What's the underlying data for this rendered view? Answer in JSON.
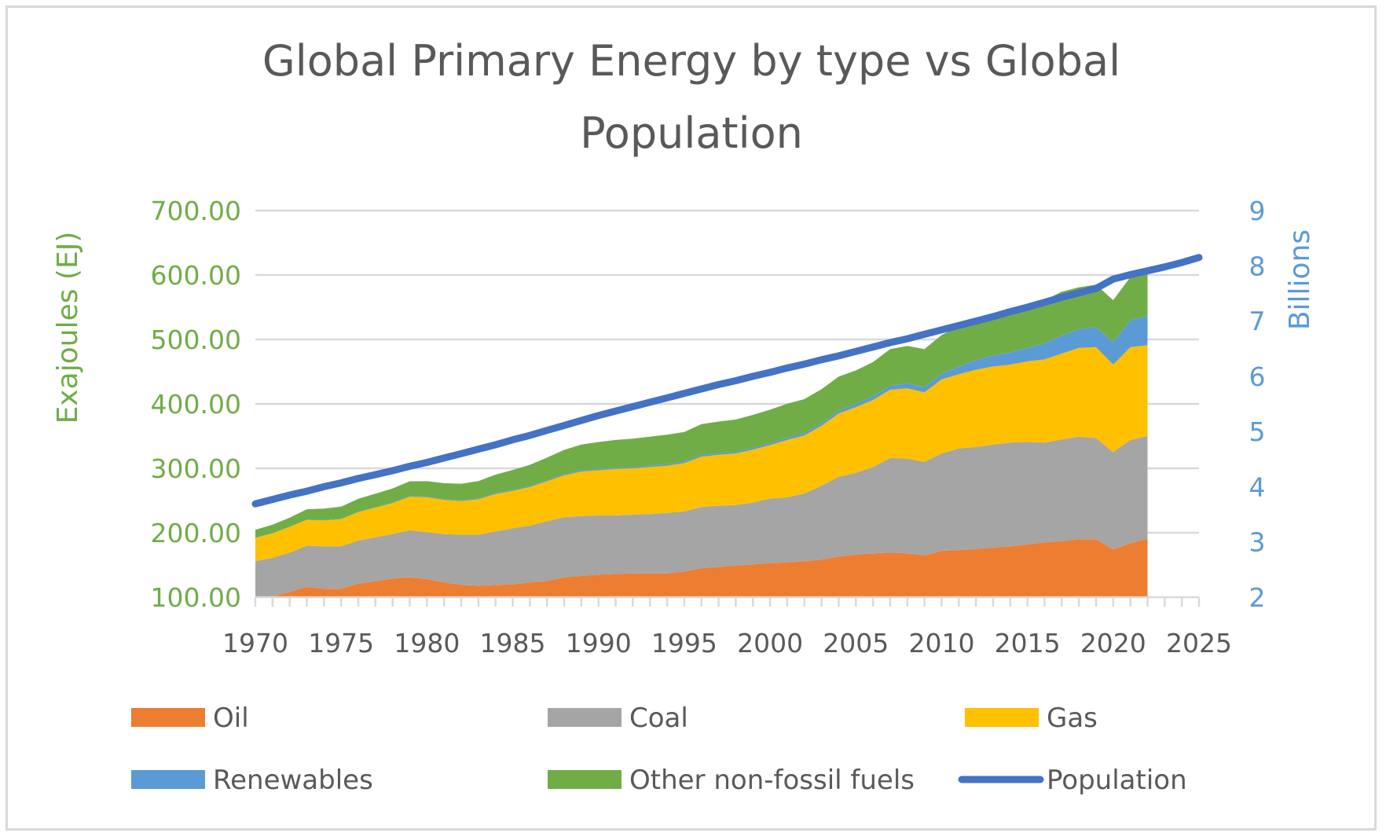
{
  "chart_data": {
    "type": "area",
    "stacked": true,
    "title": "Global Primary Energy by type vs Global Population",
    "title_lines": [
      "Global Primary Energy by type vs Global",
      "Population"
    ],
    "xlabel": "",
    "ylabel": "Exajoules (EJ)",
    "y2label": "Billions",
    "ylim": [
      100,
      700
    ],
    "y2lim": [
      2,
      9
    ],
    "xlim": [
      1970,
      2025
    ],
    "grid": true,
    "legend_position": "bottom",
    "y_tick_labels": [
      "100.00",
      "200.00",
      "300.00",
      "400.00",
      "500.00",
      "600.00",
      "700.00"
    ],
    "y_tick_values": [
      100,
      200,
      300,
      400,
      500,
      600,
      700
    ],
    "y2_tick_labels": [
      "2",
      "3",
      "4",
      "5",
      "6",
      "7",
      "8",
      "9"
    ],
    "y2_tick_values": [
      2,
      3,
      4,
      5,
      6,
      7,
      8,
      9
    ],
    "x_tick_labels": [
      "1970",
      "1975",
      "1980",
      "1985",
      "1990",
      "1995",
      "2000",
      "2005",
      "2010",
      "2015",
      "2020",
      "2025"
    ],
    "x_tick_values": [
      1970,
      1975,
      1980,
      1985,
      1990,
      1995,
      2000,
      2005,
      2010,
      2015,
      2020,
      2025
    ],
    "colors": {
      "oil": "#ed7d31",
      "coal": "#a5a5a5",
      "gas": "#ffc000",
      "renewables": "#5b9bd5",
      "other": "#70ad47",
      "population": "#4472c4",
      "left_axis": "#70ad47",
      "right_axis": "#5b9bd5",
      "text": "#595959",
      "grid": "#d9d9d9"
    },
    "years": [
      1970,
      1971,
      1972,
      1973,
      1974,
      1975,
      1976,
      1977,
      1978,
      1979,
      1980,
      1981,
      1982,
      1983,
      1984,
      1985,
      1986,
      1987,
      1988,
      1989,
      1990,
      1991,
      1992,
      1993,
      1994,
      1995,
      1996,
      1997,
      1998,
      1999,
      2000,
      2001,
      2002,
      2003,
      2004,
      2005,
      2006,
      2007,
      2008,
      2009,
      2010,
      2011,
      2012,
      2013,
      2014,
      2015,
      2016,
      2017,
      2018,
      2019,
      2020,
      2021,
      2022
    ],
    "series": [
      {
        "name": "Oil",
        "key": "oil",
        "axis": "left",
        "values": [
          98,
          101,
          108,
          116,
          113,
          113,
          121,
          125,
          129,
          131,
          128,
          123,
          119,
          118,
          119,
          120,
          123,
          125,
          131,
          133,
          135,
          136,
          137,
          137,
          137,
          140,
          145,
          147,
          149,
          151,
          153,
          154,
          156,
          158,
          163,
          166,
          168,
          169,
          168,
          165,
          172,
          173,
          175,
          177,
          179,
          182,
          185,
          187,
          190,
          190,
          174,
          184,
          190
        ]
      },
      {
        "name": "Coal",
        "key": "coal",
        "axis": "left",
        "values": [
          58,
          60,
          61,
          64,
          66,
          66,
          67,
          68,
          69,
          73,
          73,
          75,
          78,
          79,
          83,
          87,
          88,
          93,
          93,
          93,
          92,
          91,
          91,
          92,
          94,
          93,
          95,
          95,
          94,
          96,
          100,
          101,
          105,
          115,
          124,
          127,
          134,
          147,
          147,
          145,
          151,
          158,
          158,
          160,
          161,
          159,
          155,
          158,
          159,
          157,
          151,
          160,
          160
        ]
      },
      {
        "name": "Gas",
        "key": "gas",
        "axis": "left",
        "values": [
          36,
          38,
          40,
          40,
          40,
          42,
          44,
          46,
          48,
          52,
          54,
          53,
          52,
          55,
          58,
          58,
          60,
          62,
          65,
          69,
          70,
          72,
          72,
          73,
          73,
          75,
          78,
          79,
          80,
          82,
          83,
          89,
          90,
          93,
          98,
          102,
          104,
          106,
          109,
          108,
          115,
          115,
          120,
          121,
          121,
          125,
          129,
          133,
          138,
          141,
          136,
          144,
          141
        ]
      },
      {
        "name": "Renewables",
        "key": "renewables",
        "axis": "left",
        "values": [
          0.5,
          0.5,
          0.5,
          0.5,
          0.6,
          0.6,
          0.7,
          0.7,
          0.8,
          0.9,
          1.0,
          1.0,
          1.1,
          1.2,
          1.3,
          1.4,
          1.5,
          1.6,
          1.7,
          1.8,
          1.9,
          2.0,
          2.1,
          2.2,
          2.3,
          2.4,
          2.5,
          2.6,
          2.7,
          2.9,
          3.0,
          3.2,
          3.5,
          3.8,
          4.5,
          5,
          6,
          6,
          8,
          8,
          9,
          12,
          15,
          17,
          19,
          21,
          25,
          28,
          29,
          31,
          35,
          42,
          46
        ]
      },
      {
        "name": "Other non-fossil fuels",
        "key": "other",
        "axis": "left",
        "values": [
          12,
          13,
          14,
          16,
          18,
          19,
          20,
          21,
          22,
          23,
          24,
          25,
          26,
          27,
          29,
          31,
          33,
          35,
          38,
          40,
          42,
          43,
          44,
          45,
          46,
          46,
          48,
          49,
          50,
          51,
          52,
          53,
          53,
          53,
          53,
          52,
          53,
          57,
          58,
          59,
          60,
          62,
          61,
          61,
          65,
          66,
          67,
          68,
          65,
          66,
          65,
          67,
          69
        ]
      },
      {
        "name": "Population",
        "key": "population",
        "axis": "right",
        "type": "line",
        "years": [
          1970,
          1971,
          1972,
          1973,
          1974,
          1975,
          1976,
          1977,
          1978,
          1979,
          1980,
          1981,
          1982,
          1983,
          1984,
          1985,
          1986,
          1987,
          1988,
          1989,
          1990,
          1991,
          1992,
          1993,
          1994,
          1995,
          1996,
          1997,
          1998,
          1999,
          2000,
          2001,
          2002,
          2003,
          2004,
          2005,
          2006,
          2007,
          2008,
          2009,
          2010,
          2011,
          2012,
          2013,
          2014,
          2015,
          2016,
          2017,
          2018,
          2019,
          2020,
          2021,
          2022,
          2023,
          2024,
          2025
        ],
        "values": [
          3.69,
          3.77,
          3.85,
          3.92,
          4.0,
          4.07,
          4.15,
          4.22,
          4.29,
          4.37,
          4.44,
          4.52,
          4.6,
          4.68,
          4.76,
          4.85,
          4.93,
          5.02,
          5.11,
          5.2,
          5.29,
          5.37,
          5.45,
          5.53,
          5.61,
          5.69,
          5.77,
          5.85,
          5.92,
          6.0,
          6.07,
          6.15,
          6.22,
          6.3,
          6.37,
          6.45,
          6.53,
          6.61,
          6.68,
          6.76,
          6.84,
          6.92,
          7.0,
          7.08,
          7.17,
          7.25,
          7.34,
          7.43,
          7.51,
          7.59,
          7.76,
          7.84,
          7.91,
          7.98,
          8.06,
          8.15
        ]
      }
    ]
  },
  "legend": [
    {
      "label": "Oil",
      "key": "oil",
      "kind": "swatch"
    },
    {
      "label": "Coal",
      "key": "coal",
      "kind": "swatch"
    },
    {
      "label": "Gas",
      "key": "gas",
      "kind": "swatch"
    },
    {
      "label": "Renewables",
      "key": "renewables",
      "kind": "swatch"
    },
    {
      "label": "Other non-fossil fuels",
      "key": "other",
      "kind": "swatch"
    },
    {
      "label": "Population",
      "key": "population",
      "kind": "line"
    }
  ]
}
